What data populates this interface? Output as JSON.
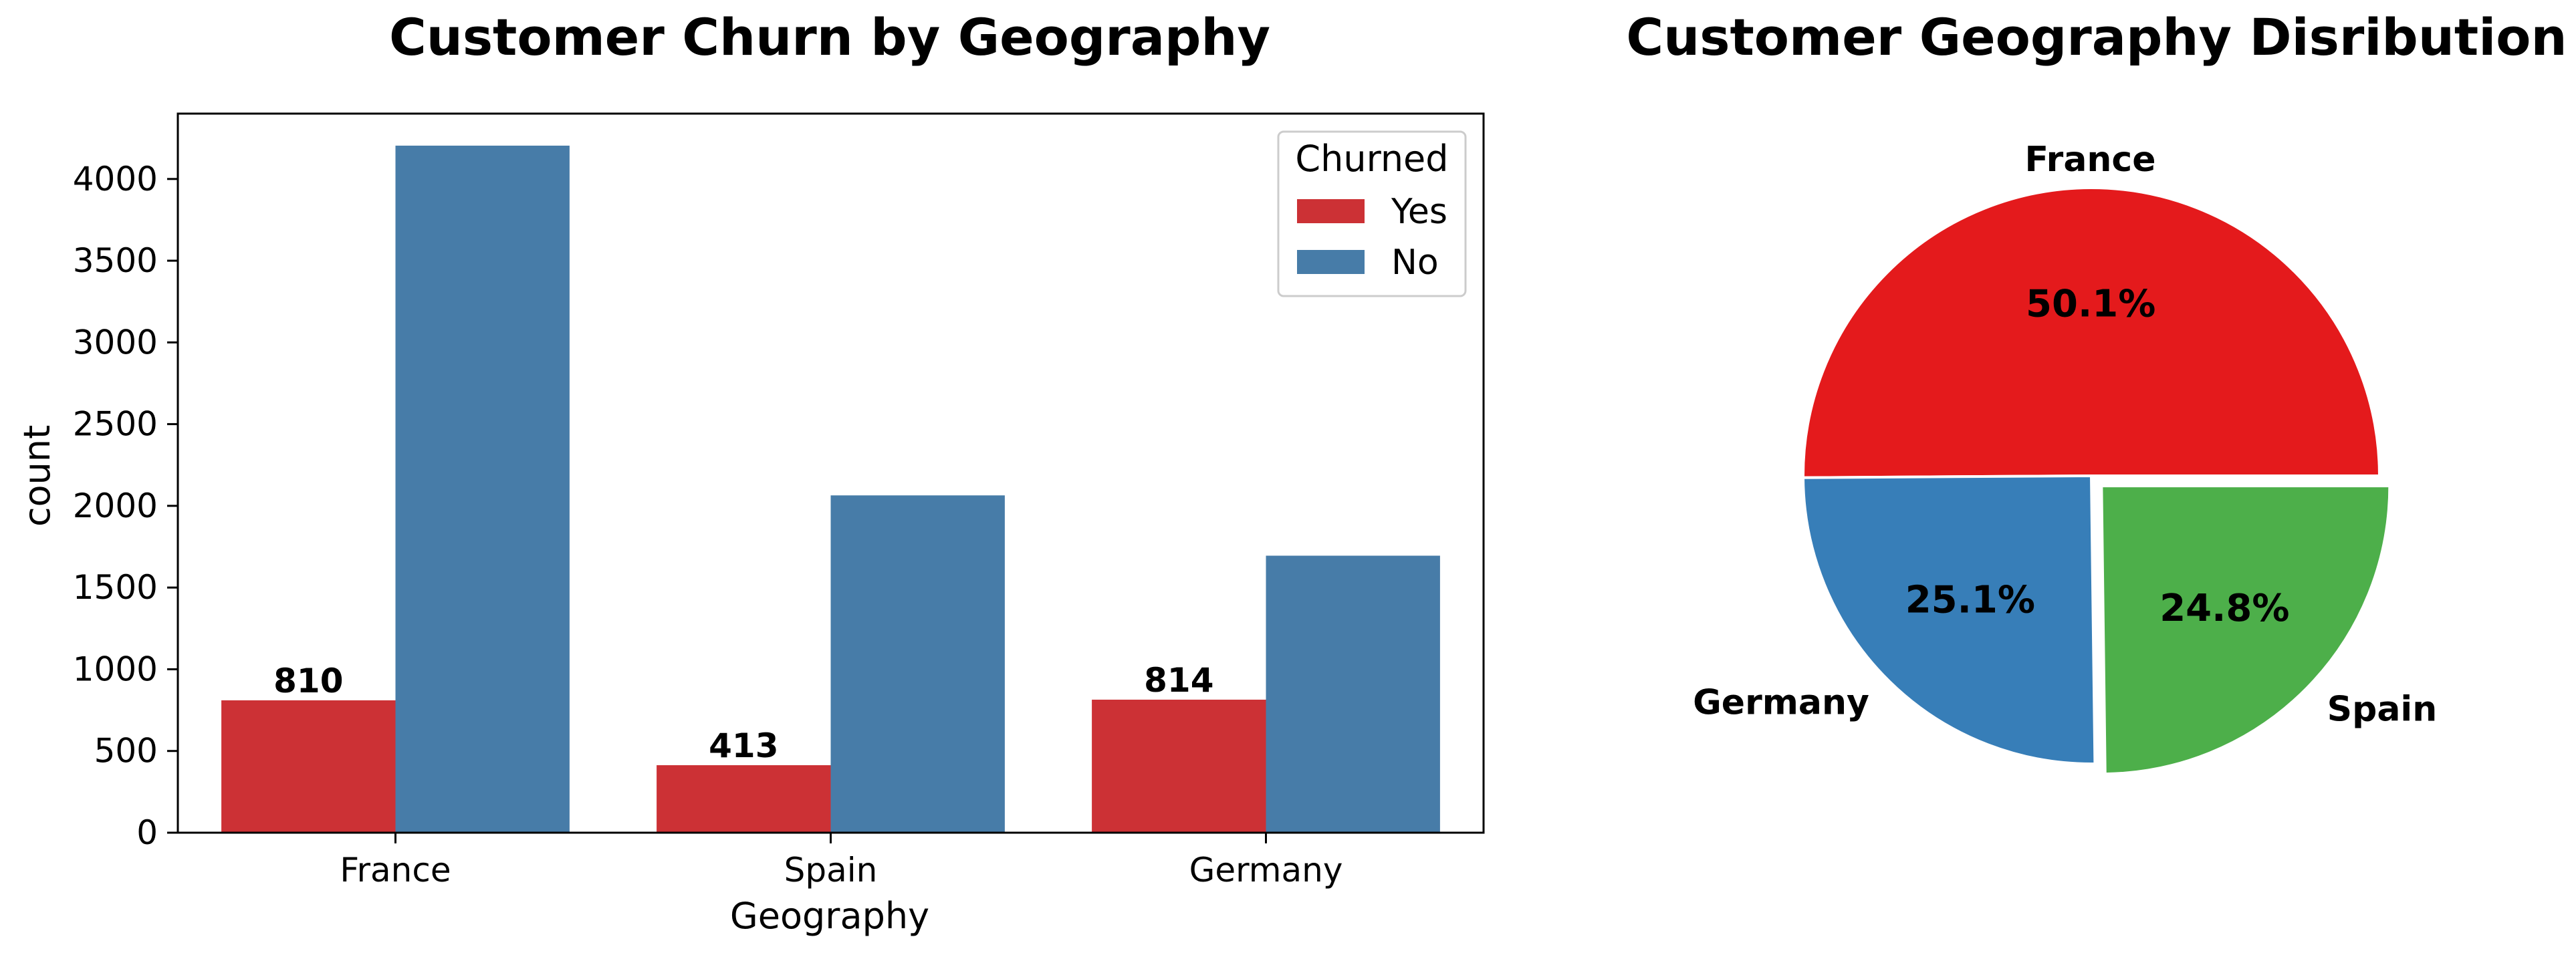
{
  "chart_data": [
    {
      "type": "bar",
      "title": "Customer Churn by Geography",
      "xlabel": "Geography",
      "ylabel": "count",
      "categories": [
        "France",
        "Spain",
        "Germany"
      ],
      "ylim": [
        0,
        4400
      ],
      "yticks": [
        0,
        500,
        1000,
        1500,
        2000,
        2500,
        3000,
        3500,
        4000
      ],
      "legend": {
        "title": "Churned",
        "position": "top-right"
      },
      "grid": false,
      "series": [
        {
          "name": "Yes",
          "color": "#cc3135",
          "values": [
            810,
            413,
            814
          ],
          "labels": [
            "810",
            "413",
            "814"
          ]
        },
        {
          "name": "No",
          "color": "#477ca8",
          "values": [
            4204,
            2064,
            1695
          ]
        }
      ]
    },
    {
      "type": "pie",
      "title": "Customer Geography Disribution",
      "slices": [
        {
          "label": "France",
          "value": 50.1,
          "pct_label": "50.1%",
          "color": "#e41a1c",
          "explode": false
        },
        {
          "label": "Germany",
          "value": 25.1,
          "pct_label": "25.1%",
          "color": "#377eb8",
          "explode": false
        },
        {
          "label": "Spain",
          "value": 24.8,
          "pct_label": "24.8%",
          "color": "#4daf4a",
          "explode": true
        }
      ],
      "startangle_deg": 0,
      "direction": "counterclockwise"
    }
  ]
}
